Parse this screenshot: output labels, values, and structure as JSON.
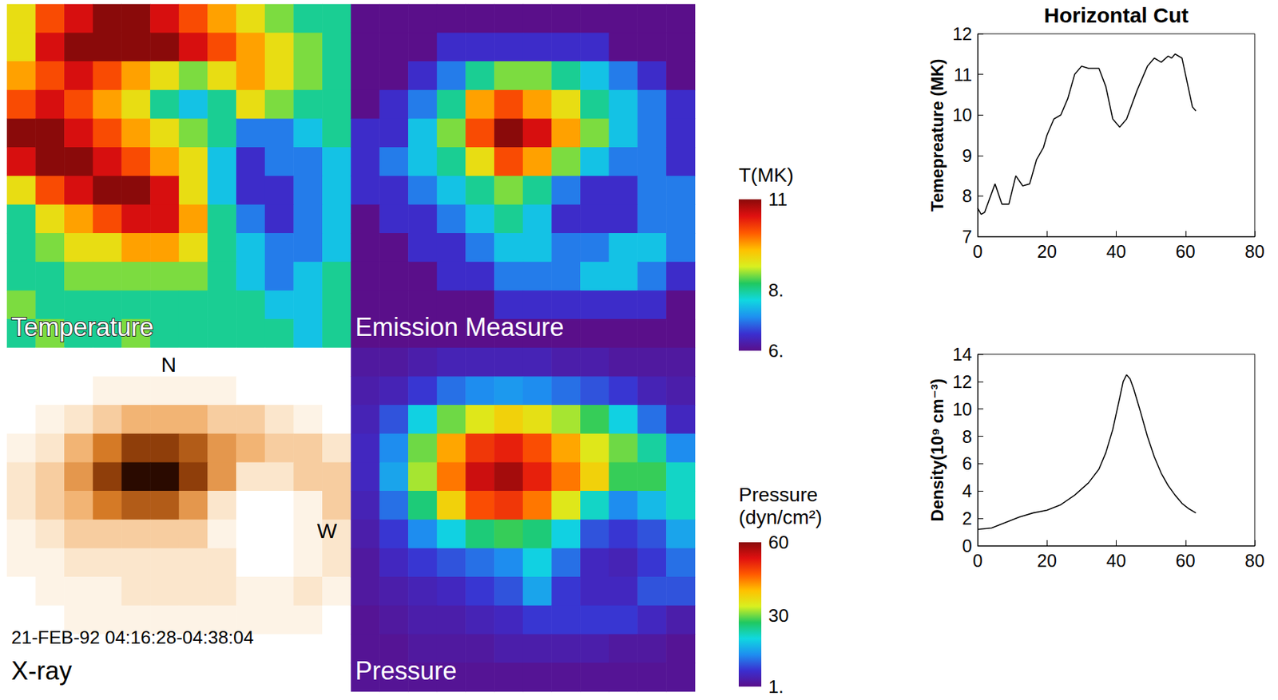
{
  "chart_data": [
    {
      "type": "heatmap",
      "title": "Temperature",
      "tick_labels": false,
      "color_range": [
        6,
        11
      ],
      "colorbar_title": "T(MK)",
      "color_ticks": [
        {
          "value": 6,
          "label": "6."
        },
        {
          "value": 8,
          "label": "8."
        },
        11
      ],
      "cells": [
        [
          9,
          10,
          10.5,
          11,
          11,
          10.5,
          10,
          9.5,
          9,
          8.5,
          8,
          8
        ],
        [
          9,
          10.5,
          11,
          11,
          11,
          11,
          10.5,
          10,
          9.5,
          9,
          8.5,
          8
        ],
        [
          9.5,
          10,
          10.5,
          10,
          9.5,
          9,
          8.5,
          9,
          9.5,
          9,
          8.5,
          8
        ],
        [
          10,
          10.5,
          10,
          9.5,
          9,
          8,
          7.5,
          8,
          9,
          8.5,
          8,
          8
        ],
        [
          11,
          11,
          10.5,
          10,
          9.5,
          9,
          8.5,
          8,
          7,
          7,
          7.5,
          8
        ],
        [
          10.5,
          11,
          11,
          10.5,
          10,
          9.5,
          9,
          7.5,
          6.5,
          7,
          7,
          7.5
        ],
        [
          9,
          10,
          10.5,
          11,
          11,
          10.5,
          9,
          7.5,
          6.5,
          6.5,
          7,
          7.5
        ],
        [
          8,
          9,
          9.5,
          10,
          10.5,
          10.5,
          9.5,
          8,
          7,
          6.5,
          7,
          7.5
        ],
        [
          8,
          8.5,
          9,
          9,
          9.5,
          9.5,
          9,
          8,
          7.5,
          7,
          7,
          7.5
        ],
        [
          8,
          8,
          8.5,
          8.5,
          8.5,
          8.5,
          8.5,
          8,
          7.5,
          7,
          7.5,
          8
        ],
        [
          8.5,
          8,
          8,
          8,
          8,
          8,
          8,
          8,
          8,
          7.5,
          7.5,
          8
        ],
        [
          8,
          8.5,
          8,
          8,
          8.5,
          8,
          8,
          8,
          8,
          8,
          7.5,
          8
        ]
      ]
    },
    {
      "type": "heatmap",
      "title": "Emission Measure",
      "tick_labels": false,
      "color_range": [
        0,
        10
      ],
      "cells": [
        [
          0,
          0,
          0,
          0,
          0,
          0,
          0,
          0,
          0,
          0,
          0,
          0
        ],
        [
          0,
          0,
          0,
          1,
          1,
          1,
          1,
          1,
          1,
          0,
          0,
          0
        ],
        [
          0,
          0,
          1,
          2,
          4,
          5,
          5,
          4,
          3,
          2,
          1,
          0
        ],
        [
          0,
          1,
          2,
          4,
          7,
          8,
          7,
          6,
          4,
          3,
          2,
          1
        ],
        [
          1,
          1,
          3,
          5,
          8,
          10,
          9,
          7,
          5,
          3,
          2,
          1
        ],
        [
          1,
          2,
          3,
          4,
          6,
          8,
          7,
          5,
          3,
          2,
          2,
          1
        ],
        [
          1,
          1,
          2,
          3,
          4,
          5,
          4,
          2,
          1,
          1,
          2,
          2
        ],
        [
          0,
          1,
          1,
          2,
          3,
          4,
          3,
          1,
          1,
          1,
          2,
          2
        ],
        [
          0,
          0,
          1,
          1,
          2,
          3,
          3,
          2,
          2,
          3,
          3,
          2
        ],
        [
          0,
          0,
          0,
          1,
          1,
          2,
          2,
          2,
          3,
          3,
          2,
          1
        ],
        [
          0,
          0,
          0,
          0,
          0,
          1,
          1,
          1,
          1,
          1,
          1,
          0
        ],
        [
          0,
          0,
          0,
          0,
          0,
          0,
          0,
          0,
          0,
          0,
          0,
          0
        ]
      ]
    },
    {
      "type": "heatmap",
      "title": "X-ray",
      "tick_labels": false,
      "color_range": [
        0,
        10
      ],
      "annotations": [
        "N",
        "W",
        "21-FEB-92 04:16:28-04:38:04"
      ],
      "cells": [
        [
          0,
          0,
          0,
          0,
          0,
          0,
          0,
          0,
          0,
          0,
          0,
          0
        ],
        [
          0,
          0,
          0,
          1,
          1,
          1,
          1,
          1,
          0,
          0,
          0,
          0
        ],
        [
          0,
          1,
          2,
          3,
          4,
          4,
          4,
          3,
          3,
          2,
          1,
          0
        ],
        [
          1,
          2,
          4,
          6,
          8,
          8,
          7,
          5,
          4,
          3,
          3,
          2
        ],
        [
          2,
          3,
          5,
          8,
          10,
          10,
          8,
          5,
          2,
          2,
          3,
          3
        ],
        [
          2,
          3,
          4,
          6,
          7,
          7,
          5,
          2,
          0,
          0,
          1,
          3
        ],
        [
          1,
          2,
          3,
          3,
          3,
          3,
          3,
          1,
          0,
          0,
          1,
          2
        ],
        [
          1,
          1,
          2,
          2,
          2,
          2,
          2,
          2,
          0,
          0,
          1,
          2
        ],
        [
          0,
          1,
          1,
          1,
          2,
          2,
          2,
          2,
          1,
          1,
          2,
          1
        ],
        [
          0,
          0,
          1,
          1,
          1,
          1,
          1,
          1,
          1,
          1,
          1,
          0
        ],
        [
          0,
          0,
          0,
          0,
          0,
          0,
          0,
          0,
          0,
          0,
          0,
          0
        ],
        [
          0,
          0,
          0,
          0,
          0,
          0,
          0,
          0,
          0,
          0,
          0,
          0
        ]
      ]
    },
    {
      "type": "heatmap",
      "title": "Pressure",
      "tick_labels": false,
      "color_range": [
        1,
        60
      ],
      "colorbar_title": "Pressure (dyn/cm²)",
      "color_ticks": [
        {
          "value": 1,
          "label": "1."
        },
        30,
        60
      ],
      "cells": [
        [
          3,
          3,
          4,
          5,
          5,
          5,
          5,
          4,
          4,
          3,
          3,
          3
        ],
        [
          4,
          5,
          8,
          12,
          14,
          15,
          14,
          12,
          10,
          8,
          5,
          4
        ],
        [
          5,
          10,
          20,
          30,
          35,
          38,
          36,
          32,
          28,
          20,
          12,
          6
        ],
        [
          6,
          14,
          30,
          42,
          50,
          52,
          48,
          42,
          35,
          30,
          24,
          14
        ],
        [
          6,
          16,
          32,
          45,
          55,
          58,
          52,
          45,
          38,
          28,
          28,
          22
        ],
        [
          5,
          12,
          26,
          38,
          48,
          50,
          45,
          35,
          22,
          14,
          18,
          22
        ],
        [
          4,
          8,
          14,
          20,
          26,
          28,
          26,
          20,
          10,
          8,
          10,
          16
        ],
        [
          3,
          6,
          8,
          10,
          12,
          14,
          20,
          12,
          6,
          5,
          8,
          12
        ],
        [
          3,
          4,
          5,
          6,
          8,
          10,
          16,
          8,
          6,
          6,
          10,
          10
        ],
        [
          2,
          3,
          4,
          4,
          5,
          6,
          8,
          8,
          8,
          8,
          6,
          4
        ],
        [
          2,
          2,
          3,
          3,
          3,
          4,
          4,
          4,
          4,
          3,
          3,
          2
        ],
        [
          2,
          2,
          2,
          2,
          2,
          2,
          2,
          2,
          2,
          2,
          2,
          2
        ]
      ]
    },
    {
      "type": "line",
      "title": "Horizontal Cut",
      "ylabel": "Temepreature (MK)",
      "color": "#000000",
      "x": [
        0,
        1,
        2,
        5,
        7,
        9,
        11,
        13,
        15,
        17,
        19,
        20,
        22,
        24,
        26,
        28,
        30,
        32,
        35,
        37,
        39,
        41,
        43,
        46,
        49,
        51,
        53,
        55,
        56,
        57,
        59,
        60,
        62,
        63
      ],
      "values": [
        7.7,
        7.55,
        7.6,
        8.3,
        7.8,
        7.8,
        8.5,
        8.25,
        8.3,
        8.9,
        9.2,
        9.5,
        9.9,
        10.0,
        10.4,
        11.0,
        11.2,
        11.15,
        11.15,
        10.7,
        9.9,
        9.7,
        9.9,
        10.6,
        11.2,
        11.4,
        11.3,
        11.45,
        11.4,
        11.5,
        11.4,
        11.0,
        10.2,
        10.1
      ],
      "xlim": [
        0,
        80
      ],
      "xticks": [
        0,
        20,
        40,
        60,
        80
      ],
      "ylim": [
        7,
        12
      ],
      "yticks": [
        7,
        8,
        9,
        10,
        11,
        12
      ]
    },
    {
      "type": "line",
      "ylabel": "Density(10⁹ cm⁻³)",
      "color": "#000000",
      "x": [
        0,
        4,
        8,
        12,
        16,
        20,
        24,
        28,
        32,
        35,
        37,
        39,
        41,
        42,
        43,
        44,
        45,
        47,
        49,
        51,
        53,
        55,
        57,
        59,
        61,
        63
      ],
      "values": [
        1.2,
        1.3,
        1.7,
        2.1,
        2.4,
        2.6,
        3.0,
        3.7,
        4.6,
        5.6,
        6.8,
        8.5,
        10.8,
        12.0,
        12.5,
        12.2,
        11.5,
        9.8,
        8.0,
        6.5,
        5.3,
        4.4,
        3.7,
        3.1,
        2.7,
        2.4
      ],
      "xlim": [
        0,
        80
      ],
      "xticks": [
        0,
        20,
        40,
        60,
        80
      ],
      "ylim": [
        0,
        14
      ],
      "yticks": [
        0,
        2,
        4,
        6,
        8,
        10,
        12,
        14
      ]
    }
  ]
}
